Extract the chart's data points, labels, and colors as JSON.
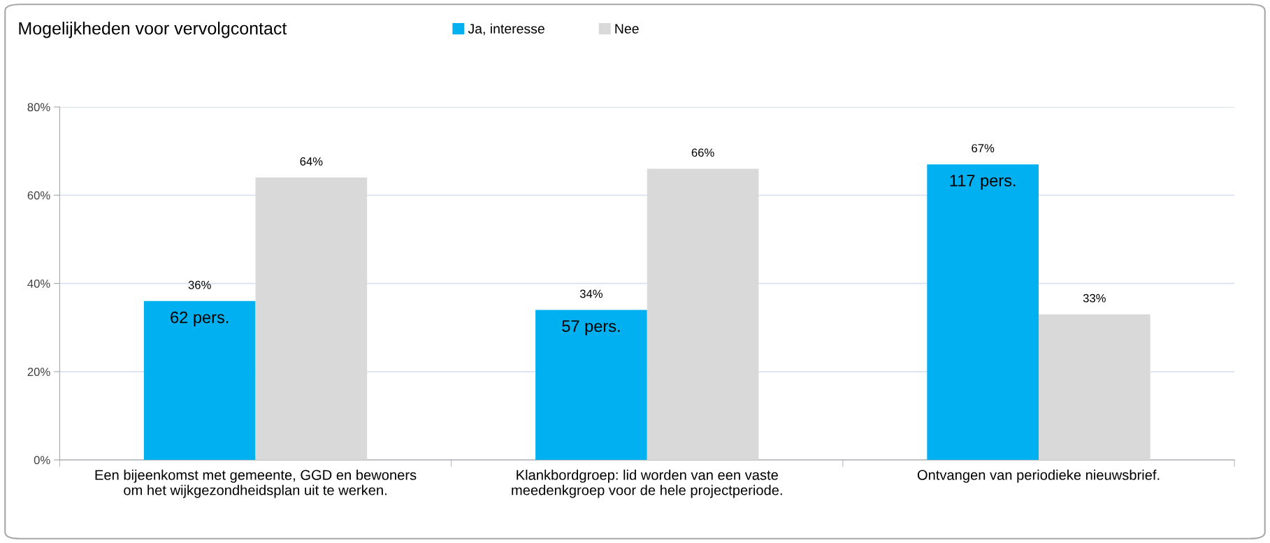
{
  "chart_data": {
    "type": "bar",
    "title": "Mogelijkheden voor vervolgcontact",
    "categories": [
      "Een bijeenkomst met gemeente, GGD en bewoners\nom het wijkgezondheidsplan uit te werken.",
      "Klankbordgroep: lid worden van een vaste\nmeedenkgroep voor de hele projectperiode.",
      "Ontvangen van periodieke nieuwsbrief."
    ],
    "series": [
      {
        "name": "Ja, interesse",
        "color": "#00b0f0",
        "values": [
          36,
          34,
          67
        ],
        "value_labels": [
          "36%",
          "34%",
          "67%"
        ]
      },
      {
        "name": "Nee",
        "color": "#d9d9d9",
        "values": [
          64,
          66,
          33
        ],
        "value_labels": [
          "64%",
          "66%",
          "33%"
        ]
      }
    ],
    "ylim": [
      0,
      80
    ],
    "yticks": [
      {
        "value": 0,
        "label": "0%"
      },
      {
        "value": 20,
        "label": "20%"
      },
      {
        "value": 40,
        "label": "40%"
      },
      {
        "value": 60,
        "label": "60%"
      },
      {
        "value": 80,
        "label": "80%"
      }
    ],
    "annotations": [
      {
        "text": "62 pers.",
        "x": "Een bijeenkomst met gemeente, GGD en bewoners\nom het wijkgezondheidsplan uit te werken.",
        "y": 32
      },
      {
        "text": "57 pers.",
        "x": "Klankbordgroep: lid worden van een vaste\nmeedenkgroep voor de hele projectperiode.",
        "y": 30
      },
      {
        "text": "117 pers.",
        "x": "Ontvangen van periodieke nieuwsbrief.",
        "y": 63
      }
    ],
    "grid": "y",
    "legend": "top"
  }
}
